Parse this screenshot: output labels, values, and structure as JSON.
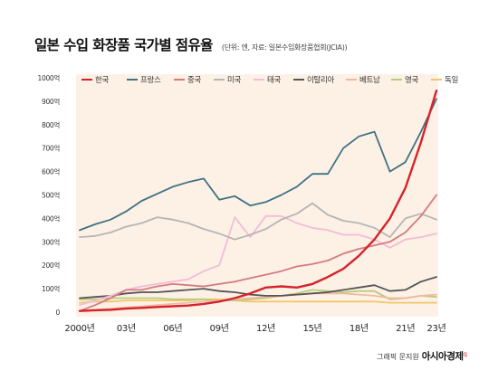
{
  "chart_data": {
    "type": "line",
    "title": "일본 수입 화장품 국가별 점유율",
    "subtitle": "(단위: 엔, 자료: 일본수입화장품협회(JCIA))",
    "y_ticks": [
      "1000억",
      "900억",
      "800억",
      "700억",
      "600억",
      "500억",
      "400억",
      "300억",
      "200억",
      "100억",
      "0"
    ],
    "x_ticks": [
      "2000년",
      "03년",
      "06년",
      "09년",
      "12년",
      "15년",
      "18년",
      "21년",
      "23년"
    ],
    "ylim": [
      0,
      1000
    ],
    "x": [
      2000,
      2001,
      2002,
      2003,
      2004,
      2005,
      2006,
      2007,
      2008,
      2009,
      2010,
      2011,
      2012,
      2013,
      2014,
      2015,
      2016,
      2017,
      2018,
      2019,
      2020,
      2021,
      2022,
      2023
    ],
    "series": [
      {
        "name": "한국",
        "color": "#d6232a",
        "width": 2.4,
        "values": [
          5,
          8,
          10,
          15,
          18,
          22,
          25,
          28,
          35,
          45,
          60,
          80,
          105,
          110,
          105,
          120,
          150,
          185,
          240,
          310,
          400,
          530,
          725,
          945
        ]
      },
      {
        "name": "프랑스",
        "color": "#3f7282",
        "width": 1.8,
        "values": [
          350,
          375,
          395,
          430,
          475,
          505,
          535,
          555,
          570,
          480,
          495,
          455,
          470,
          500,
          535,
          590,
          590,
          700,
          750,
          770,
          600,
          640,
          770,
          910
        ]
      },
      {
        "name": "중국",
        "color": "#d47a80",
        "width": 1.8,
        "values": [
          5,
          30,
          60,
          95,
          95,
          110,
          120,
          115,
          110,
          120,
          130,
          145,
          160,
          175,
          195,
          205,
          220,
          250,
          270,
          285,
          300,
          340,
          410,
          500
        ]
      },
      {
        "name": "미국",
        "color": "#b5b5b5",
        "width": 1.8,
        "values": [
          320,
          325,
          340,
          365,
          380,
          405,
          395,
          380,
          355,
          335,
          310,
          330,
          355,
          395,
          420,
          465,
          415,
          390,
          380,
          360,
          320,
          400,
          420,
          395
        ]
      },
      {
        "name": "태국",
        "color": "#f2bcd6",
        "width": 1.8,
        "values": [
          30,
          50,
          70,
          95,
          110,
          120,
          130,
          140,
          175,
          200,
          405,
          320,
          410,
          410,
          380,
          360,
          350,
          330,
          330,
          310,
          275,
          310,
          320,
          335
        ]
      },
      {
        "name": "이탈리아",
        "color": "#555555",
        "width": 1.8,
        "values": [
          60,
          65,
          70,
          80,
          85,
          85,
          90,
          95,
          100,
          90,
          85,
          75,
          70,
          70,
          75,
          80,
          85,
          95,
          105,
          115,
          90,
          95,
          130,
          150
        ]
      },
      {
        "name": "베트남",
        "color": "#f0b9a4",
        "width": 1.8,
        "values": [
          5,
          10,
          15,
          20,
          25,
          30,
          35,
          40,
          45,
          50,
          55,
          60,
          65,
          70,
          75,
          80,
          80,
          80,
          75,
          70,
          60,
          60,
          70,
          75
        ]
      },
      {
        "name": "영국",
        "color": "#b8cc7a",
        "width": 1.8,
        "values": [
          55,
          55,
          60,
          60,
          60,
          60,
          55,
          55,
          55,
          50,
          50,
          55,
          60,
          70,
          80,
          95,
          90,
          85,
          90,
          90,
          55,
          60,
          70,
          65
        ]
      },
      {
        "name": "독일",
        "color": "#f2c66a",
        "width": 1.8,
        "values": [
          40,
          45,
          45,
          50,
          50,
          50,
          50,
          50,
          55,
          55,
          50,
          45,
          45,
          45,
          45,
          45,
          45,
          45,
          45,
          45,
          40,
          40,
          40,
          40
        ]
      }
    ],
    "grid": false,
    "legend_placement": "top-left",
    "background_fill": "#fdf1e6"
  },
  "credit": {
    "prefix": "그래픽 문지원",
    "brand": "아시아경제"
  }
}
